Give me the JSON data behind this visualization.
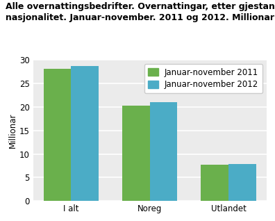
{
  "title_line1": "Alle overnattingsbedrifter. Overnattingar, etter gjestane sin",
  "title_line2": "nasjonalitet. Januar-november. 2011 og 2012. Millionar",
  "ylabel": "Millionar",
  "categories": [
    "I alt",
    "Noreg",
    "Utlandet"
  ],
  "series": [
    {
      "label": "Januar-november 2011",
      "values": [
        28.0,
        20.2,
        7.7
      ],
      "color": "#6ab04c"
    },
    {
      "label": "Januar-november 2012",
      "values": [
        28.7,
        21.0,
        7.8
      ],
      "color": "#4bacc6"
    }
  ],
  "ylim": [
    0,
    30
  ],
  "yticks": [
    0,
    5,
    10,
    15,
    20,
    25,
    30
  ],
  "background_color": "#ffffff",
  "plot_background": "#ebebeb",
  "grid_color": "#ffffff",
  "bar_width": 0.35,
  "title_fontsize": 9.0,
  "label_fontsize": 8.5,
  "tick_fontsize": 8.5,
  "legend_fontsize": 8.5
}
